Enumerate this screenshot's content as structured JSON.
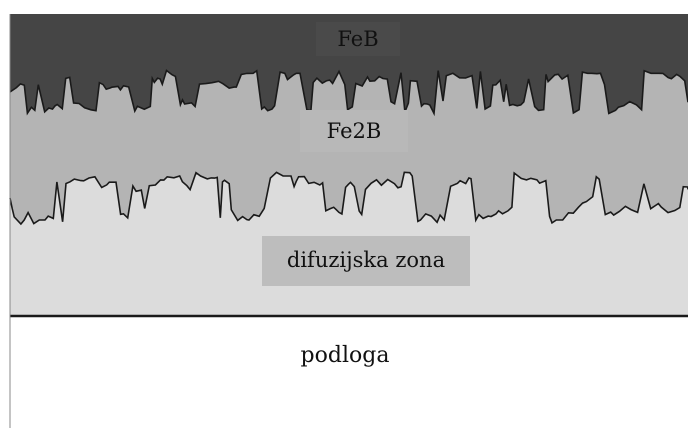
{
  "layers": {
    "feb": {
      "label": "FeB",
      "color": "#454545"
    },
    "fe2b": {
      "label": "Fe2B",
      "color": "#b4b4b4"
    },
    "diffusion_zone": {
      "label": "difuzijska zona",
      "color": "#dcdcdc"
    },
    "substrate": {
      "label": "podloga",
      "color": "#ffffff"
    }
  },
  "boundary_color": "#1a1a1a"
}
